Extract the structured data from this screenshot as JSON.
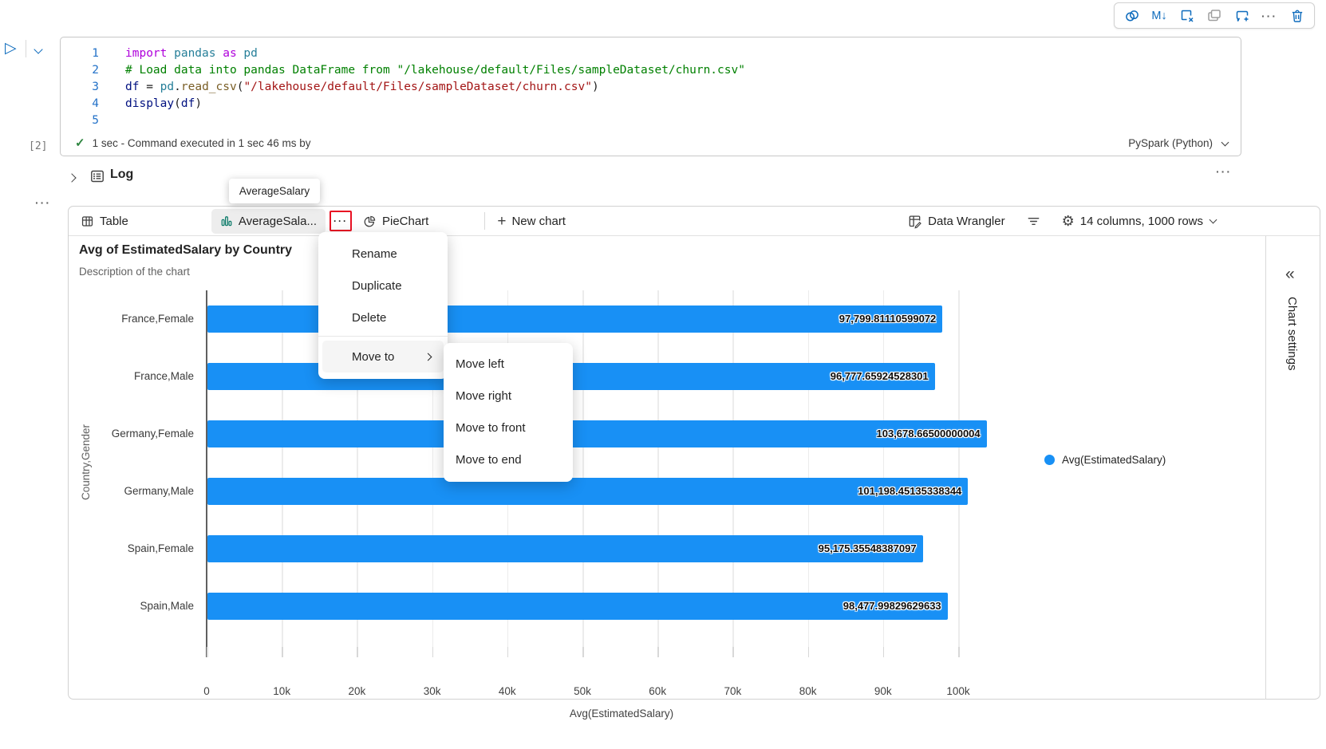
{
  "toolbar": {
    "markdown_glyph": "M↓",
    "icons": [
      "copilot-icon",
      "markdown-icon",
      "clear-output-icon",
      "copy-icon",
      "add-comment-icon",
      "more-icon",
      "delete-icon"
    ]
  },
  "cell": {
    "execution_count": "[2]",
    "status_text": "1 sec - Command executed in 1 sec 46 ms by",
    "language_label": "PySpark (Python)",
    "code_lines": [
      [
        [
          "import",
          "kw"
        ],
        [
          " pandas",
          "mod"
        ],
        [
          " as",
          "kw"
        ],
        [
          " pd",
          "mod"
        ]
      ],
      [
        [
          "# Load data into pandas DataFrame from \"/lakehouse/default/Files/sampleDataset/churn.csv\"",
          "com"
        ]
      ],
      [
        [
          "df",
          "var"
        ],
        [
          " = ",
          "pun"
        ],
        [
          "pd",
          "mod"
        ],
        [
          ".",
          "pun"
        ],
        [
          "read_csv",
          "fn"
        ],
        [
          "(",
          "pun"
        ],
        [
          "\"/lakehouse/default/Files/sampleDataset/churn.csv\"",
          "str"
        ],
        [
          ")",
          "pun"
        ]
      ],
      [
        [
          "display",
          "var"
        ],
        [
          "(",
          "pun"
        ],
        [
          "df",
          "var"
        ],
        [
          ")",
          "pun"
        ]
      ],
      []
    ]
  },
  "log": {
    "label": "Log"
  },
  "tooltip": {
    "text": "AverageSalary"
  },
  "tabs": {
    "table": "Table",
    "chart": "AverageSala...",
    "pie": "PieChart",
    "new_chart": "New chart"
  },
  "data_tools": {
    "data_wrangler": "Data Wrangler",
    "dimensions": "14 columns, 1000 rows"
  },
  "context_menu": {
    "items": [
      "Rename",
      "Duplicate",
      "Delete"
    ],
    "move_to": "Move to",
    "submenu": [
      "Move left",
      "Move right",
      "Move to front",
      "Move to end"
    ]
  },
  "sidebar": {
    "collapse_glyph": "«",
    "title": "Chart settings"
  },
  "colors": {
    "accent_blue": "#0f6cbd",
    "bar_blue": "#1890f5",
    "chart_tab_icon_teal": "#0e7c6b",
    "highlight_red": "#e81123",
    "status_green": "#2e8540"
  },
  "chart_data": {
    "type": "bar",
    "orientation": "horizontal",
    "title": "Avg of EstimatedSalary by Country",
    "subtitle": "Description of the chart",
    "categories": [
      "France,Female",
      "France,Male",
      "Germany,Female",
      "Germany,Male",
      "Spain,Female",
      "Spain,Male"
    ],
    "values": [
      97799.81110599072,
      96777.65924528301,
      103678.66500000004,
      101198.45135338344,
      95175.35548387097,
      98477.99829629633
    ],
    "value_labels": [
      "97,799.81110599072",
      "96,777.65924528301",
      "103,678.66500000004",
      "101,198.45135338344",
      "95,175.35548387097",
      "98,477.99829629633"
    ],
    "xlabel": "Avg(EstimatedSalary)",
    "ylabel": "Country,Gender",
    "xlim": [
      0,
      105000
    ],
    "x_ticks": [
      "0",
      "10k",
      "20k",
      "30k",
      "40k",
      "50k",
      "60k",
      "70k",
      "80k",
      "90k",
      "100k"
    ],
    "grid": true,
    "bar_color": "#1890f5",
    "legend_position": "right",
    "legend": [
      {
        "label": "Avg(EstimatedSalary)",
        "color": "#1890f5"
      }
    ]
  }
}
